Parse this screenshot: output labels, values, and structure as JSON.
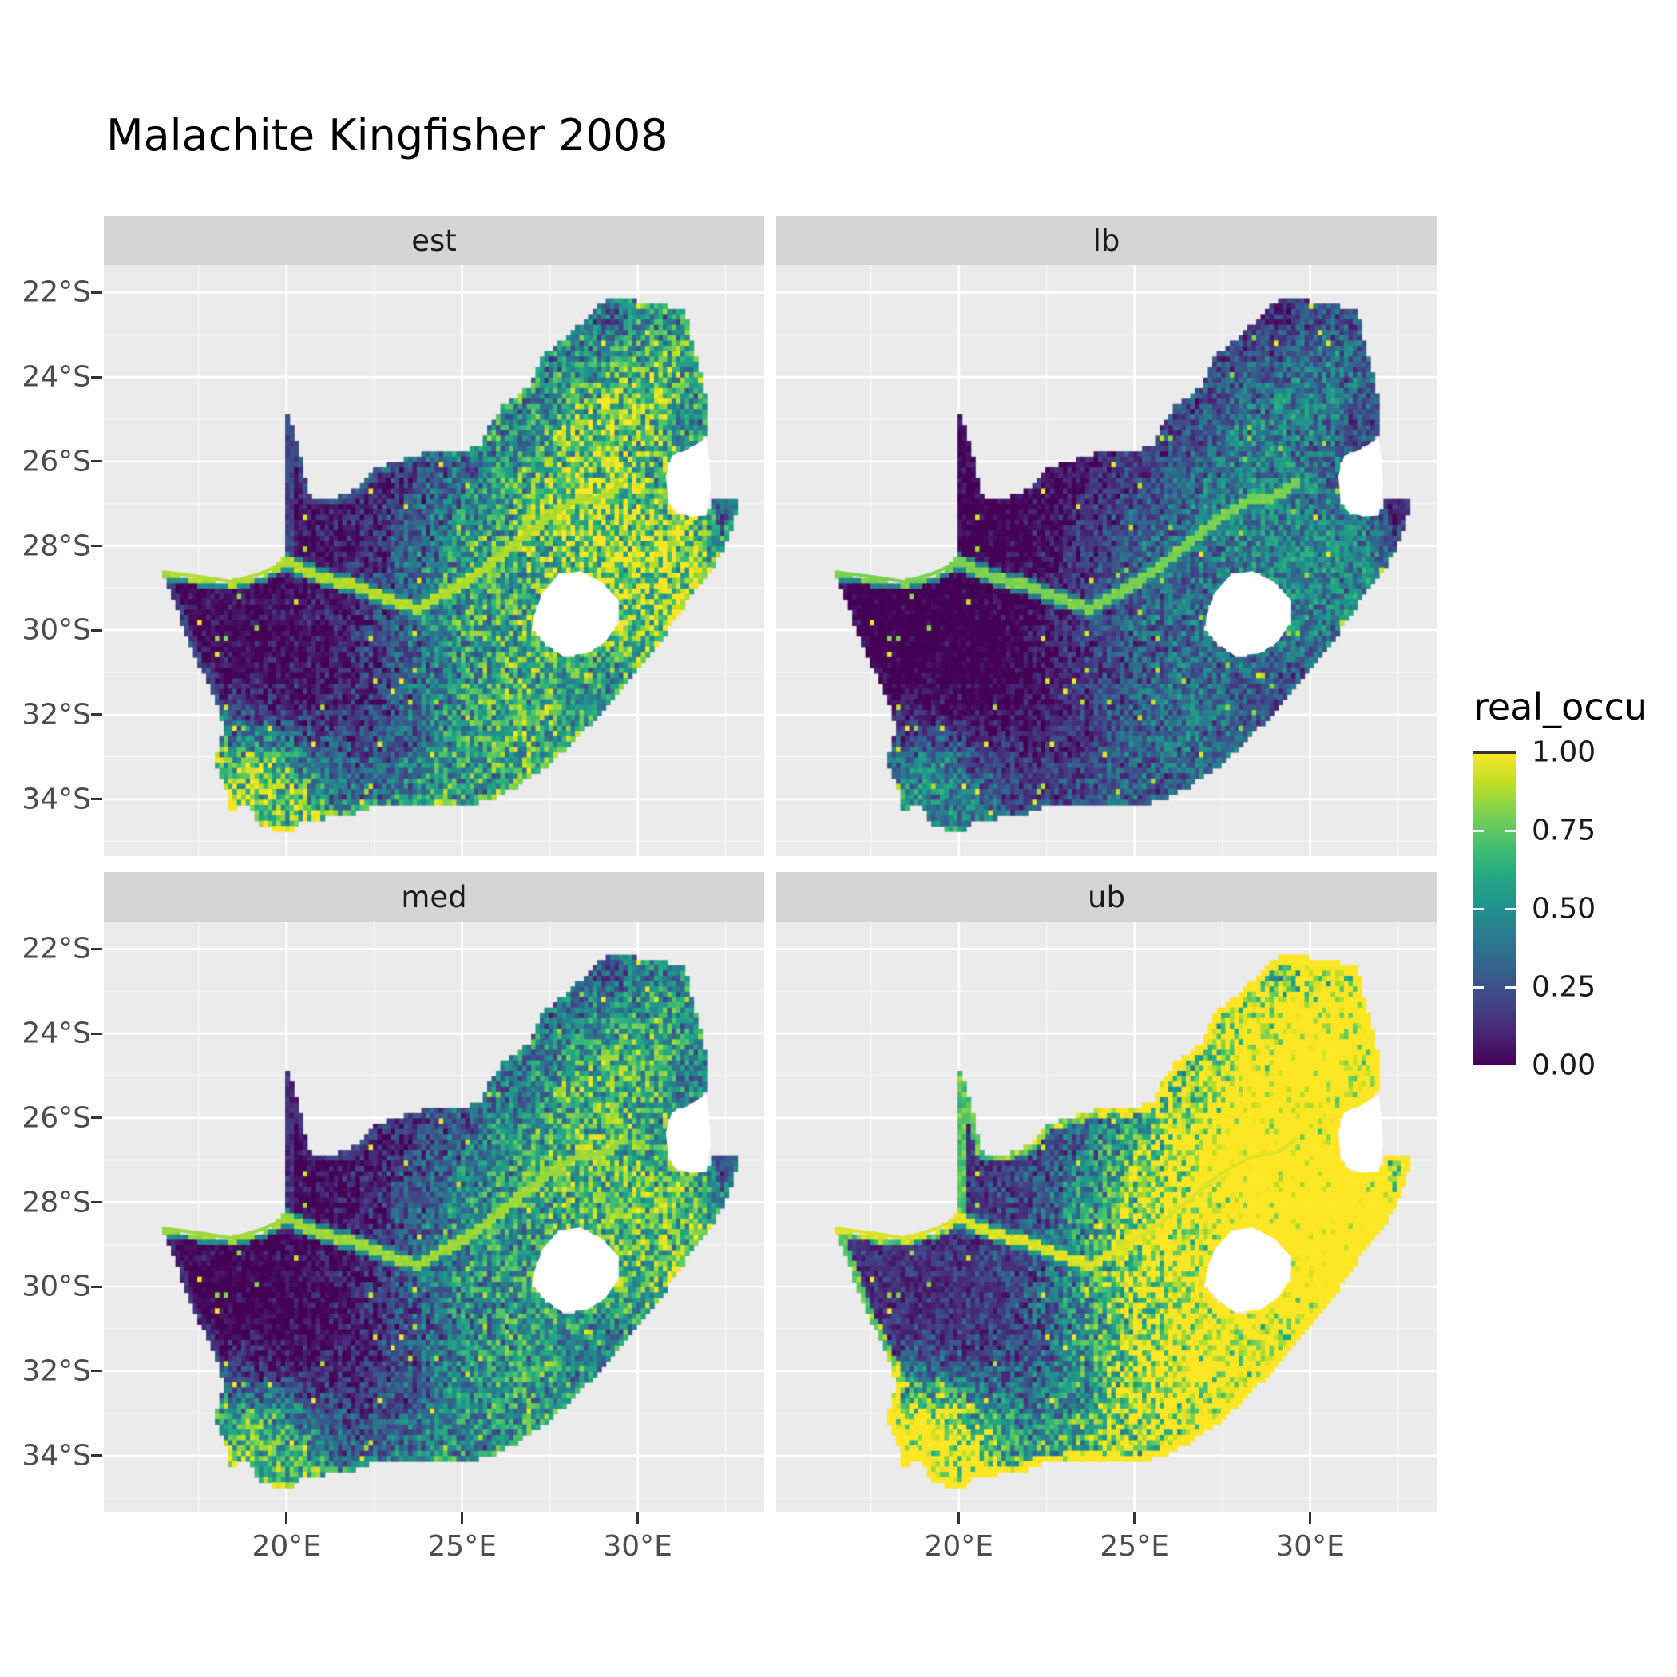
{
  "title": "Malachite Kingfisher 2008",
  "style": {
    "background": "#ffffff",
    "panel_bg": "#ebebeb",
    "strip_bg": "#d5d5d5",
    "grid_color": "#ffffff",
    "axis_text_color": "#4d4d4d",
    "strip_text_color": "#1a1a1a",
    "title_color": "#000000",
    "tick_color": "#333333",
    "hole_fill": "#ffffff"
  },
  "chart_data": {
    "type": "heatmap",
    "title": "Malachite Kingfisher 2008",
    "subtitle": "",
    "facets": [
      {
        "id": "est",
        "label": "est"
      },
      {
        "id": "lb",
        "label": "lb"
      },
      {
        "id": "med",
        "label": "med"
      },
      {
        "id": "ub",
        "label": "ub"
      }
    ],
    "x_axis": {
      "range": [
        14.8,
        33.6
      ],
      "ticks": [
        {
          "v": 20,
          "label": "20°E"
        },
        {
          "v": 25,
          "label": "25°E"
        },
        {
          "v": 30,
          "label": "30°E"
        }
      ],
      "minor": [
        17.5,
        22.5,
        27.5,
        32.5
      ]
    },
    "y_axis": {
      "range": [
        -35.35,
        -21.35
      ],
      "ticks": [
        {
          "v": -22,
          "label": "22°S"
        },
        {
          "v": -24,
          "label": "24°S"
        },
        {
          "v": -26,
          "label": "26°S"
        },
        {
          "v": -28,
          "label": "28°S"
        },
        {
          "v": -30,
          "label": "30°S"
        },
        {
          "v": -32,
          "label": "32°S"
        },
        {
          "v": -34,
          "label": "34°S"
        }
      ],
      "minor": [
        -23,
        -25,
        -27,
        -29,
        -31,
        -33,
        -35
      ]
    },
    "legend": {
      "title": "real_occu",
      "range": [
        0,
        1
      ],
      "ticks": [
        {
          "v": 1.0,
          "label": "1.00"
        },
        {
          "v": 0.75,
          "label": "0.75"
        },
        {
          "v": 0.5,
          "label": "0.50"
        },
        {
          "v": 0.25,
          "label": "0.25"
        },
        {
          "v": 0.0,
          "label": "0.00"
        }
      ]
    },
    "colormap": {
      "name": "viridis",
      "stops": [
        "#440154",
        "#482475",
        "#414487",
        "#355f8d",
        "#2a788e",
        "#21918c",
        "#22a884",
        "#44bf70",
        "#7ad151",
        "#bddf26",
        "#fde725"
      ]
    },
    "map": {
      "cell_deg": 0.125,
      "outline": [
        [
          16.45,
          -28.63
        ],
        [
          17.1,
          -28.72
        ],
        [
          17.65,
          -28.77
        ],
        [
          18.2,
          -28.88
        ],
        [
          18.85,
          -28.72
        ],
        [
          19.35,
          -28.72
        ],
        [
          19.7,
          -28.5
        ],
        [
          19.99,
          -28.2
        ],
        [
          19.99,
          -24.77
        ],
        [
          20.2,
          -25.3
        ],
        [
          20.45,
          -26.1
        ],
        [
          20.7,
          -26.86
        ],
        [
          21.35,
          -26.86
        ],
        [
          21.95,
          -26.66
        ],
        [
          22.6,
          -26.12
        ],
        [
          23.3,
          -25.95
        ],
        [
          24.2,
          -25.76
        ],
        [
          24.95,
          -25.78
        ],
        [
          25.55,
          -25.6
        ],
        [
          25.85,
          -25.05
        ],
        [
          26.15,
          -24.68
        ],
        [
          26.9,
          -24.25
        ],
        [
          27.3,
          -23.5
        ],
        [
          27.95,
          -23.08
        ],
        [
          28.6,
          -22.56
        ],
        [
          29.05,
          -22.2
        ],
        [
          29.7,
          -22.14
        ],
        [
          30.35,
          -22.28
        ],
        [
          31.3,
          -22.36
        ],
        [
          31.55,
          -23.2
        ],
        [
          31.8,
          -23.9
        ],
        [
          31.95,
          -24.6
        ],
        [
          31.98,
          -25.4
        ],
        [
          31.4,
          -25.72
        ],
        [
          30.95,
          -25.85
        ],
        [
          30.78,
          -26.35
        ],
        [
          30.85,
          -26.9
        ],
        [
          31.05,
          -27.2
        ],
        [
          31.5,
          -27.32
        ],
        [
          31.97,
          -27.3
        ],
        [
          32.12,
          -26.86
        ],
        [
          32.89,
          -26.86
        ],
        [
          32.55,
          -27.9
        ],
        [
          32.05,
          -28.6
        ],
        [
          31.4,
          -29.3
        ],
        [
          30.7,
          -30.2
        ],
        [
          30.0,
          -30.95
        ],
        [
          29.2,
          -31.75
        ],
        [
          28.3,
          -32.5
        ],
        [
          27.6,
          -33.1
        ],
        [
          26.45,
          -33.75
        ],
        [
          25.65,
          -34.05
        ],
        [
          24.85,
          -34.2
        ],
        [
          23.6,
          -34.1
        ],
        [
          22.55,
          -34.15
        ],
        [
          21.6,
          -34.42
        ],
        [
          20.5,
          -34.48
        ],
        [
          20.0,
          -34.82
        ],
        [
          19.3,
          -34.62
        ],
        [
          18.82,
          -34.1
        ],
        [
          18.38,
          -34.32
        ],
        [
          18.3,
          -33.85
        ],
        [
          17.95,
          -33.1
        ],
        [
          18.25,
          -32.3
        ],
        [
          17.8,
          -31.3
        ],
        [
          17.2,
          -30.3
        ],
        [
          16.85,
          -29.4
        ]
      ],
      "lesotho": [
        [
          27.05,
          -29.65
        ],
        [
          27.3,
          -29.1
        ],
        [
          27.75,
          -28.68
        ],
        [
          28.35,
          -28.6
        ],
        [
          28.95,
          -28.85
        ],
        [
          29.45,
          -29.28
        ],
        [
          29.4,
          -29.85
        ],
        [
          29.1,
          -30.25
        ],
        [
          28.55,
          -30.55
        ],
        [
          27.85,
          -30.6
        ],
        [
          27.35,
          -30.3
        ],
        [
          27.02,
          -29.95
        ]
      ],
      "eswatini": [
        [
          31.95,
          -25.45
        ],
        [
          31.4,
          -25.73
        ],
        [
          30.97,
          -25.87
        ],
        [
          30.8,
          -26.35
        ],
        [
          30.87,
          -26.9
        ],
        [
          31.07,
          -27.18
        ],
        [
          31.5,
          -27.3
        ],
        [
          31.95,
          -27.28
        ],
        [
          32.08,
          -26.6
        ],
        [
          32.03,
          -25.95
        ]
      ],
      "river": [
        [
          16.5,
          -28.62
        ],
        [
          17.6,
          -28.74
        ],
        [
          18.45,
          -28.85
        ],
        [
          19.25,
          -28.66
        ],
        [
          20.0,
          -28.38
        ],
        [
          20.9,
          -28.72
        ],
        [
          21.9,
          -28.94
        ],
        [
          22.85,
          -29.25
        ],
        [
          23.7,
          -29.5
        ],
        [
          24.65,
          -29.08
        ],
        [
          25.65,
          -28.55
        ],
        [
          26.55,
          -27.95
        ],
        [
          27.4,
          -27.35
        ],
        [
          28.25,
          -26.95
        ],
        [
          29.1,
          -26.8
        ],
        [
          29.6,
          -26.5
        ]
      ]
    },
    "value_model": {
      "hotspots": [
        [
          28.6,
          -25.9,
          2.2,
          0.85
        ],
        [
          29.9,
          -29.2,
          1.5,
          0.8
        ],
        [
          30.9,
          -23.6,
          1.3,
          0.5
        ],
        [
          18.75,
          -33.8,
          1.1,
          0.95
        ],
        [
          20.6,
          -34.3,
          1.2,
          0.55
        ],
        [
          24.3,
          -34.0,
          1.5,
          0.5
        ],
        [
          27.3,
          -32.7,
          1.4,
          0.5
        ],
        [
          24.9,
          -28.6,
          1.9,
          0.4
        ],
        [
          26.0,
          -30.8,
          2.0,
          0.35
        ],
        [
          31.5,
          -28.8,
          1.0,
          0.55
        ]
      ],
      "facet_params": {
        "est": {
          "mul": 1.0,
          "add": 0.0,
          "east": 0.05,
          "coast": 0.18,
          "river": 0.88
        },
        "lb": {
          "mul": 0.65,
          "add": -0.05,
          "east": 0.0,
          "coast": 0.05,
          "river": 0.8
        },
        "med": {
          "mul": 0.9,
          "add": -0.02,
          "east": 0.05,
          "coast": 0.12,
          "river": 0.85
        },
        "ub": {
          "mul": 1.3,
          "add": 0.1,
          "east": 0.55,
          "coast": 0.6,
          "river": 0.95
        }
      }
    }
  }
}
